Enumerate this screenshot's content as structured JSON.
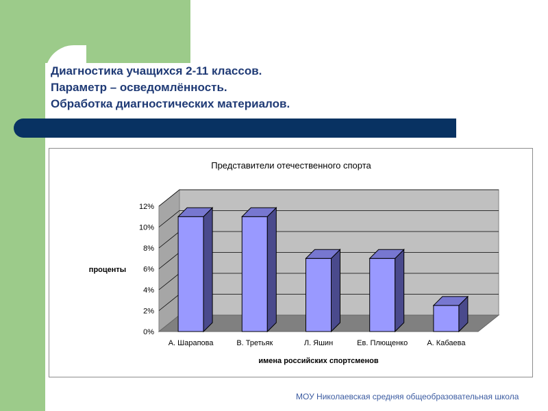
{
  "slide": {
    "title_lines": [
      "Диагностика учащихся 2-11 классов.",
      "Параметр – осведомлённость.",
      "Обработка диагностических материалов."
    ],
    "footer": "МОУ Николаевская средняя общеобразовательная школа"
  },
  "colors": {
    "band_green": "#9ccb8a",
    "dark_bar": "#083262",
    "title_text": "#1f3a75",
    "bar_front": "#9999ff",
    "bar_side": "#4a4a8c",
    "bar_top": "#7777d0",
    "wall": "#c0c0c0",
    "floor": "#808080"
  },
  "chart_data": {
    "type": "bar",
    "title": "Представители отечественного спорта",
    "xlabel": "имена российских спортсменов",
    "ylabel": "проценты",
    "categories": [
      "А. Шарапова",
      "В. Третьяк",
      "Л. Яшин",
      "Ев. Плющенко",
      "А. Кабаева"
    ],
    "values": [
      11,
      11,
      7,
      7,
      2.5
    ],
    "ylim": [
      0,
      12
    ],
    "yticks": [
      "0%",
      "2%",
      "4%",
      "6%",
      "8%",
      "10%",
      "12%"
    ],
    "grid": true,
    "three_d": true,
    "legend": "none"
  }
}
